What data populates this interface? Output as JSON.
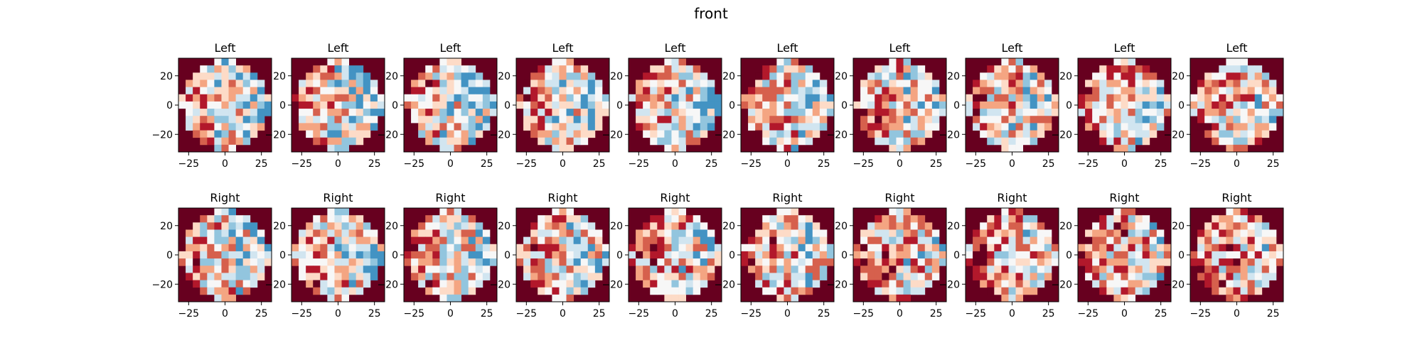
{
  "figure": {
    "title": "front"
  },
  "chart_data": {
    "type": "heatmap",
    "title": "front",
    "colormap": "RdBu",
    "background_color": "#67001f",
    "grid": false,
    "xlim": [
      -32,
      32
    ],
    "ylim": [
      -32,
      32
    ],
    "xticks": [
      -25,
      0,
      25
    ],
    "yticks": [
      20,
      0,
      -20
    ],
    "xtick_labels": [
      "−25",
      "0",
      "25"
    ],
    "ytick_labels": [
      "20",
      "0",
      "−20"
    ],
    "rows": [
      {
        "label": "Left",
        "panels": 10
      },
      {
        "label": "Right",
        "panels": 10
      }
    ],
    "grid_cells": 13,
    "color_samples_per_row": [
      [
        "#67001f",
        "#b2182b",
        "#d6604d",
        "#f4a582",
        "#fddbc7",
        "#f7f7f7",
        "#d1e5f0",
        "#92c5de",
        "#2166ac",
        "#053061"
      ],
      [
        "#67001f",
        "#b2182b",
        "#d6604d",
        "#f4a582",
        "#fddbc7",
        "#f7f7f7",
        "#d1e5f0",
        "#92c5de",
        "#4393c3",
        "#2166ac"
      ]
    ]
  }
}
